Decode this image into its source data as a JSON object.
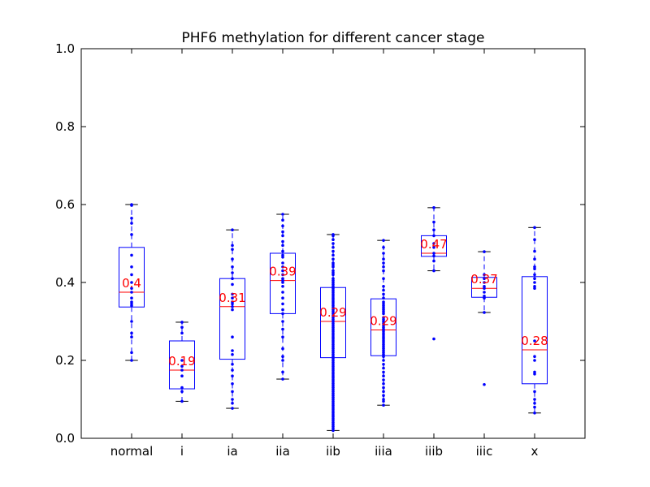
{
  "chart_data": {
    "type": "box",
    "title": "PHF6 methylation for different cancer stage",
    "xlabel": "",
    "ylabel": "",
    "ylim": [
      0.0,
      1.0
    ],
    "yticks": [
      "0.0",
      "0.2",
      "0.4",
      "0.6",
      "0.8",
      "1.0"
    ],
    "ytick_values": [
      0.0,
      0.2,
      0.4,
      0.6,
      0.8,
      1.0
    ],
    "grid": false,
    "colors": {
      "box": "#0000ff",
      "median": "#ff0000",
      "mean_label": "#ff0000",
      "points": "#0000ff",
      "whisker_cap": "#000000"
    },
    "categories": [
      "normal",
      "i",
      "ia",
      "iia",
      "iib",
      "iiia",
      "iiib",
      "iiic",
      "x"
    ],
    "boxes": [
      {
        "label": "normal",
        "min": 0.2,
        "q1": 0.337,
        "median": 0.375,
        "q3": 0.49,
        "max": 0.6,
        "mean_label": "0.4",
        "points": [
          0.6,
          0.598,
          0.565,
          0.552,
          0.523,
          0.47,
          0.44,
          0.42,
          0.4,
          0.385,
          0.375,
          0.36,
          0.35,
          0.345,
          0.34,
          0.3,
          0.27,
          0.26,
          0.22,
          0.2
        ]
      },
      {
        "label": "i",
        "min": 0.095,
        "q1": 0.127,
        "median": 0.175,
        "q3": 0.25,
        "max": 0.298,
        "mean_label": "0.19",
        "points": [
          0.298,
          0.285,
          0.27,
          0.2,
          0.185,
          0.175,
          0.16,
          0.13,
          0.12,
          0.095
        ]
      },
      {
        "label": "ia",
        "min": 0.077,
        "q1": 0.203,
        "median": 0.338,
        "q3": 0.41,
        "max": 0.535,
        "mean_label": "0.31",
        "points": [
          0.535,
          0.495,
          0.485,
          0.46,
          0.44,
          0.425,
          0.41,
          0.395,
          0.37,
          0.36,
          0.35,
          0.345,
          0.338,
          0.33,
          0.26,
          0.225,
          0.215,
          0.19,
          0.175,
          0.16,
          0.14,
          0.12,
          0.1,
          0.09,
          0.077
        ]
      },
      {
        "label": "iia",
        "min": 0.152,
        "q1": 0.32,
        "median": 0.405,
        "q3": 0.475,
        "max": 0.575,
        "mean_label": "0.39",
        "points": [
          0.575,
          0.56,
          0.545,
          0.53,
          0.52,
          0.505,
          0.495,
          0.48,
          0.47,
          0.465,
          0.45,
          0.44,
          0.43,
          0.42,
          0.41,
          0.405,
          0.4,
          0.39,
          0.375,
          0.36,
          0.345,
          0.33,
          0.32,
          0.3,
          0.28,
          0.26,
          0.23,
          0.21,
          0.2,
          0.17,
          0.152
        ]
      },
      {
        "label": "iib",
        "min": 0.02,
        "q1": 0.207,
        "median": 0.3,
        "q3": 0.387,
        "max": 0.523,
        "mean_label": "0.29",
        "points": [
          0.523,
          0.52,
          0.51,
          0.5,
          0.49,
          0.48,
          0.47,
          0.46,
          0.45,
          0.445,
          0.44,
          0.43,
          0.425,
          0.42,
          0.41,
          0.405,
          0.4,
          0.395,
          0.39,
          0.385,
          0.38,
          0.375,
          0.37,
          0.365,
          0.36,
          0.355,
          0.35,
          0.345,
          0.34,
          0.335,
          0.33,
          0.325,
          0.32,
          0.315,
          0.31,
          0.305,
          0.3,
          0.295,
          0.29,
          0.285,
          0.28,
          0.275,
          0.27,
          0.265,
          0.26,
          0.255,
          0.25,
          0.245,
          0.24,
          0.235,
          0.23,
          0.225,
          0.22,
          0.215,
          0.21,
          0.205,
          0.2,
          0.195,
          0.19,
          0.185,
          0.18,
          0.175,
          0.17,
          0.165,
          0.16,
          0.155,
          0.15,
          0.145,
          0.14,
          0.135,
          0.13,
          0.125,
          0.12,
          0.115,
          0.11,
          0.105,
          0.1,
          0.095,
          0.09,
          0.085,
          0.08,
          0.075,
          0.07,
          0.065,
          0.06,
          0.055,
          0.05,
          0.045,
          0.04,
          0.035,
          0.03,
          0.025,
          0.02
        ]
      },
      {
        "label": "iiia",
        "min": 0.085,
        "q1": 0.212,
        "median": 0.278,
        "q3": 0.358,
        "max": 0.508,
        "mean_label": "0.29",
        "points": [
          0.508,
          0.49,
          0.475,
          0.46,
          0.45,
          0.44,
          0.43,
          0.41,
          0.39,
          0.38,
          0.37,
          0.36,
          0.35,
          0.345,
          0.34,
          0.335,
          0.33,
          0.325,
          0.32,
          0.31,
          0.305,
          0.3,
          0.295,
          0.29,
          0.285,
          0.28,
          0.275,
          0.27,
          0.265,
          0.26,
          0.255,
          0.25,
          0.245,
          0.24,
          0.235,
          0.23,
          0.225,
          0.22,
          0.215,
          0.21,
          0.2,
          0.19,
          0.18,
          0.17,
          0.16,
          0.15,
          0.14,
          0.13,
          0.12,
          0.11,
          0.1,
          0.095,
          0.085
        ]
      },
      {
        "label": "iiib",
        "min": 0.43,
        "q1": 0.467,
        "median": 0.475,
        "q3": 0.52,
        "max": 0.592,
        "mean_label": "0.47",
        "points": [
          0.592,
          0.555,
          0.535,
          0.52,
          0.5,
          0.49,
          0.475,
          0.468,
          0.455,
          0.43,
          0.255
        ]
      },
      {
        "label": "iiic",
        "min": 0.323,
        "q1": 0.362,
        "median": 0.385,
        "q3": 0.413,
        "max": 0.479,
        "mean_label": "0.37",
        "points": [
          0.479,
          0.42,
          0.41,
          0.4,
          0.39,
          0.385,
          0.375,
          0.365,
          0.36,
          0.323,
          0.138
        ]
      },
      {
        "label": "x",
        "min": 0.065,
        "q1": 0.14,
        "median": 0.227,
        "q3": 0.415,
        "max": 0.541,
        "mean_label": "0.28",
        "points": [
          0.541,
          0.51,
          0.48,
          0.46,
          0.44,
          0.435,
          0.42,
          0.41,
          0.4,
          0.39,
          0.385,
          0.25,
          0.21,
          0.2,
          0.17,
          0.165,
          0.12,
          0.1,
          0.09,
          0.08,
          0.065
        ]
      }
    ]
  }
}
